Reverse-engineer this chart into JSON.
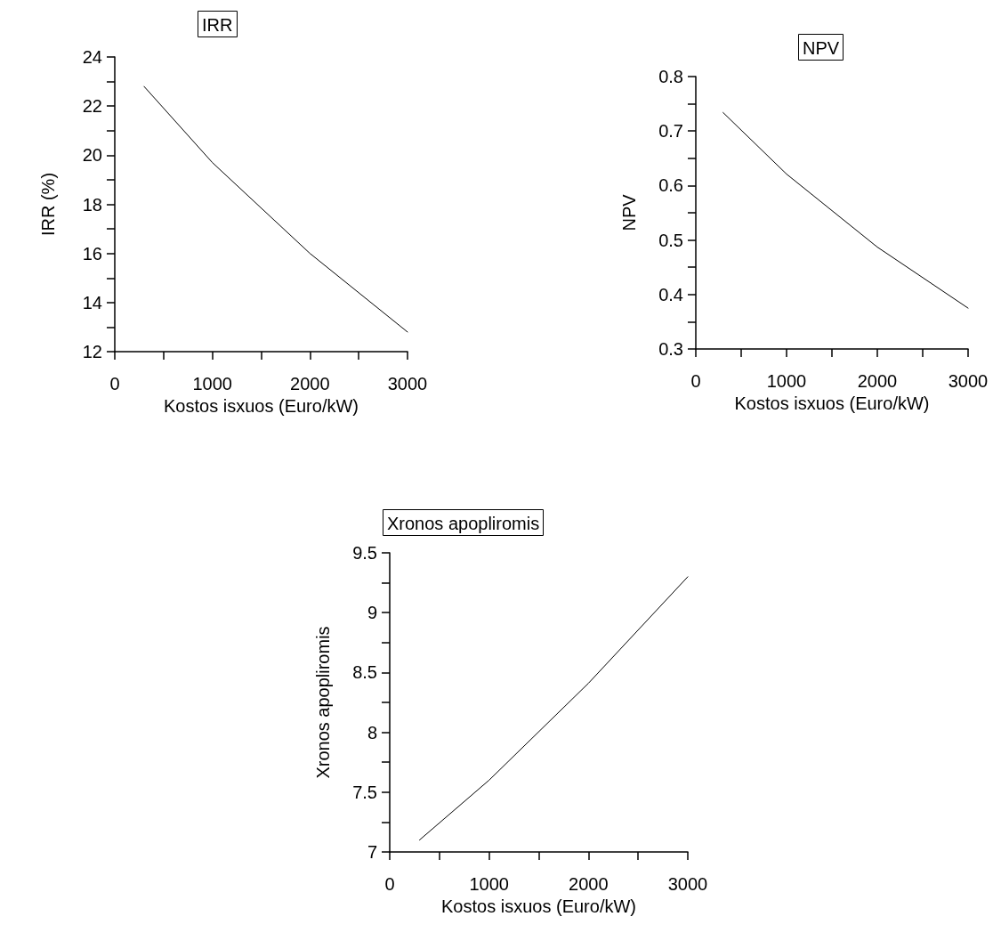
{
  "chart_data": [
    {
      "type": "line",
      "title": "IRR",
      "xlabel": "Kostos isxuos (Euro/kW)",
      "ylabel": "IRR (%)",
      "x": [
        300,
        1000,
        2000,
        3000
      ],
      "values": [
        22.8,
        19.7,
        16.0,
        12.8
      ],
      "color": "#000000",
      "xlim": [
        0,
        3000
      ],
      "ylim": [
        12,
        24
      ],
      "xticks": [
        0,
        {
          "value": 500,
          "label": null
        },
        1000,
        {
          "value": 1500,
          "label": null
        },
        2000,
        {
          "value": 2500,
          "label": null
        },
        3000
      ],
      "yticks": [
        12,
        {
          "value": 13,
          "label": null
        },
        14,
        {
          "value": 15,
          "label": null
        },
        16,
        {
          "value": 17,
          "label": null
        },
        18,
        {
          "value": 19,
          "label": null
        },
        20,
        {
          "value": 21,
          "label": null
        },
        22,
        {
          "value": 23,
          "label": null
        },
        24
      ],
      "grid": false,
      "marker": "none",
      "line_style": "solid"
    },
    {
      "type": "line",
      "title": "NPV",
      "xlabel": "Kostos isxuos (Euro/kW)",
      "ylabel": "NPV",
      "x": [
        300,
        1000,
        2000,
        3000
      ],
      "values": [
        0.734,
        0.621,
        0.487,
        0.375
      ],
      "color": "#000000",
      "xlim": [
        0,
        3000
      ],
      "ylim": [
        0.3,
        0.8
      ],
      "xticks": [
        0,
        {
          "value": 500,
          "label": null
        },
        1000,
        {
          "value": 1500,
          "label": null
        },
        2000,
        {
          "value": 2500,
          "label": null
        },
        3000
      ],
      "yticks": [
        0.3,
        {
          "value": 0.35,
          "label": null
        },
        0.4,
        {
          "value": 0.45,
          "label": null
        },
        0.5,
        {
          "value": 0.55,
          "label": null
        },
        0.6,
        {
          "value": 0.65,
          "label": null
        },
        0.7,
        {
          "value": 0.75,
          "label": null
        },
        0.8
      ],
      "grid": false,
      "marker": "none",
      "line_style": "solid"
    },
    {
      "type": "line",
      "title": "Xronos apopliromis",
      "xlabel": "Kostos isxuos (Euro/kW)",
      "ylabel": "Xronos apopliromis",
      "x": [
        300,
        1000,
        2000,
        3000
      ],
      "values": [
        7.1,
        7.6,
        8.41,
        9.3
      ],
      "color": "#000000",
      "xlim": [
        0,
        3000
      ],
      "ylim": [
        7,
        9.5
      ],
      "xticks": [
        0,
        {
          "value": 500,
          "label": null
        },
        1000,
        {
          "value": 1500,
          "label": null
        },
        2000,
        {
          "value": 2500,
          "label": null
        },
        3000
      ],
      "yticks": [
        7,
        {
          "value": 7.25,
          "label": null
        },
        7.5,
        {
          "value": 7.75,
          "label": null
        },
        8,
        {
          "value": 8.25,
          "label": null
        },
        8.5,
        {
          "value": 8.75,
          "label": null
        },
        9,
        {
          "value": 9.25,
          "label": null
        },
        9.5
      ],
      "grid": false,
      "marker": "none",
      "line_style": "solid"
    }
  ]
}
